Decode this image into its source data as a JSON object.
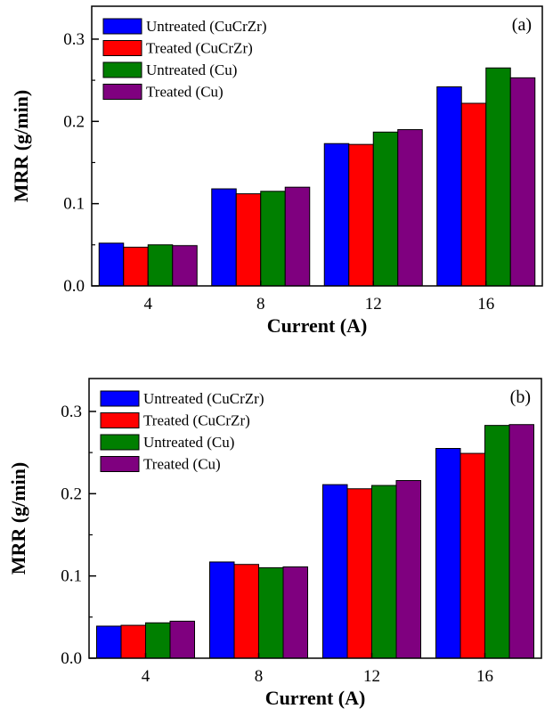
{
  "colors": {
    "untreated_cucrzr": "#0000ff",
    "treated_cucrzr": "#ff0000",
    "untreated_cu": "#007f00",
    "treated_cu": "#7f007f"
  },
  "chart_data": [
    {
      "type": "bar",
      "panel_label": "(a)",
      "xlabel": "Current (A)",
      "ylabel": "MRR (g/min)",
      "categories": [
        "4",
        "8",
        "12",
        "16"
      ],
      "ylim": [
        0,
        0.34
      ],
      "yticks": [
        "0.0",
        "0.1",
        "0.2",
        "0.3"
      ],
      "legend_position": "top-left",
      "series": [
        {
          "name": "Untreated (CuCrZr)",
          "values": [
            0.052,
            0.118,
            0.173,
            0.242
          ]
        },
        {
          "name": "Treated (CuCrZr)",
          "values": [
            0.047,
            0.112,
            0.172,
            0.222
          ]
        },
        {
          "name": "Untreated (Cu)",
          "values": [
            0.05,
            0.115,
            0.187,
            0.265
          ]
        },
        {
          "name": "Treated (Cu)",
          "values": [
            0.049,
            0.12,
            0.19,
            0.253
          ]
        }
      ]
    },
    {
      "type": "bar",
      "panel_label": "(b)",
      "xlabel": "Current (A)",
      "ylabel": "MRR (g/min)",
      "categories": [
        "4",
        "8",
        "12",
        "16"
      ],
      "ylim": [
        0,
        0.34
      ],
      "yticks": [
        "0.0",
        "0.1",
        "0.2",
        "0.3"
      ],
      "legend_position": "top-left",
      "series": [
        {
          "name": "Untreated (CuCrZr)",
          "values": [
            0.039,
            0.117,
            0.211,
            0.255
          ]
        },
        {
          "name": "Treated (CuCrZr)",
          "values": [
            0.04,
            0.114,
            0.206,
            0.249
          ]
        },
        {
          "name": "Untreated (Cu)",
          "values": [
            0.043,
            0.11,
            0.21,
            0.283
          ]
        },
        {
          "name": "Treated (Cu)",
          "values": [
            0.045,
            0.111,
            0.216,
            0.284
          ]
        }
      ]
    }
  ]
}
